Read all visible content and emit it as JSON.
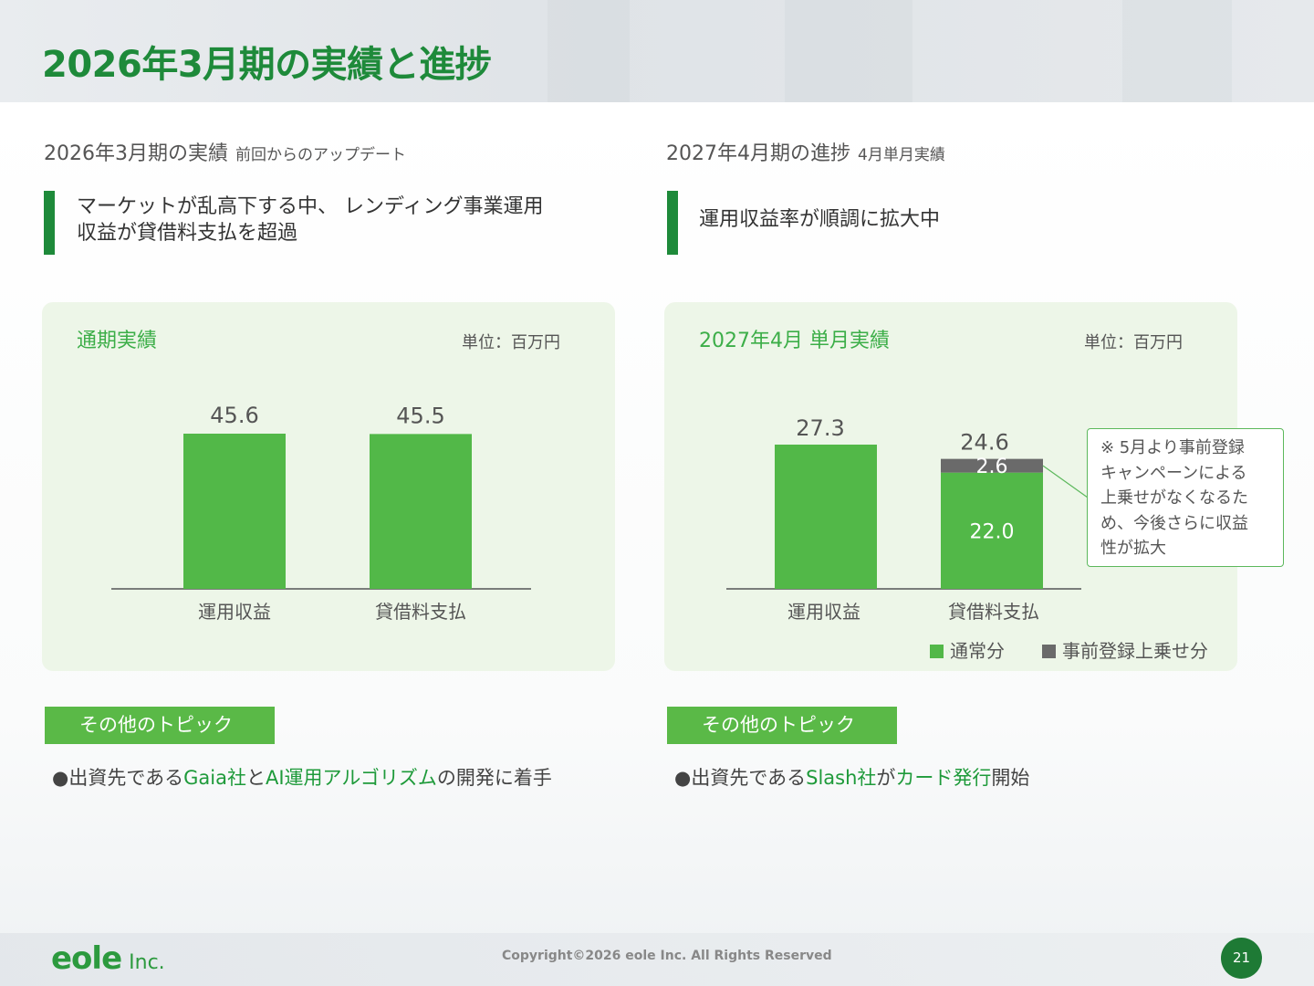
{
  "page": {
    "title": "2026年3月期の実績と進捗",
    "page_number": "21",
    "copyright": "Copyright©2026 eole Inc. All Rights Reserved",
    "logo": {
      "name": "eole",
      "suffix": "Inc."
    }
  },
  "left": {
    "section_title": "2026年3月期の実績",
    "section_sub": "前回からのアップデート",
    "headline_line1": "マーケットが乱高下する中、 レンディング事業運用",
    "headline_line2": "収益が貸借料支払を超過",
    "panel_title": "通期実績",
    "unit": "単位：百万円",
    "topic_label": "その他のトピック",
    "bullet": {
      "mark": "●",
      "p1": "出資先である",
      "h1": "Gaia社",
      "p2": "と",
      "h2": "AI運用アルゴリズム",
      "p3": "の開発に着手"
    }
  },
  "right": {
    "section_title": "2027年4月期の進捗",
    "section_sub": "4月単月実績",
    "headline": "運用収益率が順調に拡大中",
    "panel_title": "2027年4月 単月実績",
    "unit": "単位：百万円",
    "note": [
      "※ 5月より事前登録",
      "キャンペーンによる",
      "上乗せがなくなるた",
      "め、今後さらに収益",
      "性が拡大"
    ],
    "legend": {
      "normal": "通常分",
      "extra": "事前登録上乗せ分"
    },
    "topic_label": "その他のトピック",
    "bullet": {
      "mark": "●",
      "p1": "出資先である",
      "h1": "Slash社",
      "p2": "が",
      "h2": "カード発行",
      "p3": "開始"
    }
  },
  "colors": {
    "brand_green": "#1e8a3a",
    "bar_green": "#52b848",
    "bar_gray": "#6a6a6a"
  },
  "chart_data": [
    {
      "type": "bar",
      "title": "通期実績",
      "unit": "単位：百万円",
      "categories": [
        "運用収益",
        "貸借料支払"
      ],
      "values": [
        45.6,
        45.5
      ],
      "value_labels": [
        "45.6",
        "45.5"
      ]
    },
    {
      "type": "bar",
      "stacked": true,
      "title": "2027年4月 単月実績",
      "unit": "単位：百万円",
      "categories": [
        "運用収益",
        "貸借料支払"
      ],
      "totals": [
        27.3,
        24.6
      ],
      "total_labels": [
        "27.3",
        "24.6"
      ],
      "series": [
        {
          "name": "通常分",
          "values": [
            27.3,
            22.0
          ],
          "labels": [
            "",
            "22.0"
          ]
        },
        {
          "name": "事前登録上乗せ分",
          "values": [
            0,
            2.6
          ],
          "labels": [
            "",
            "2.6"
          ]
        }
      ]
    }
  ]
}
